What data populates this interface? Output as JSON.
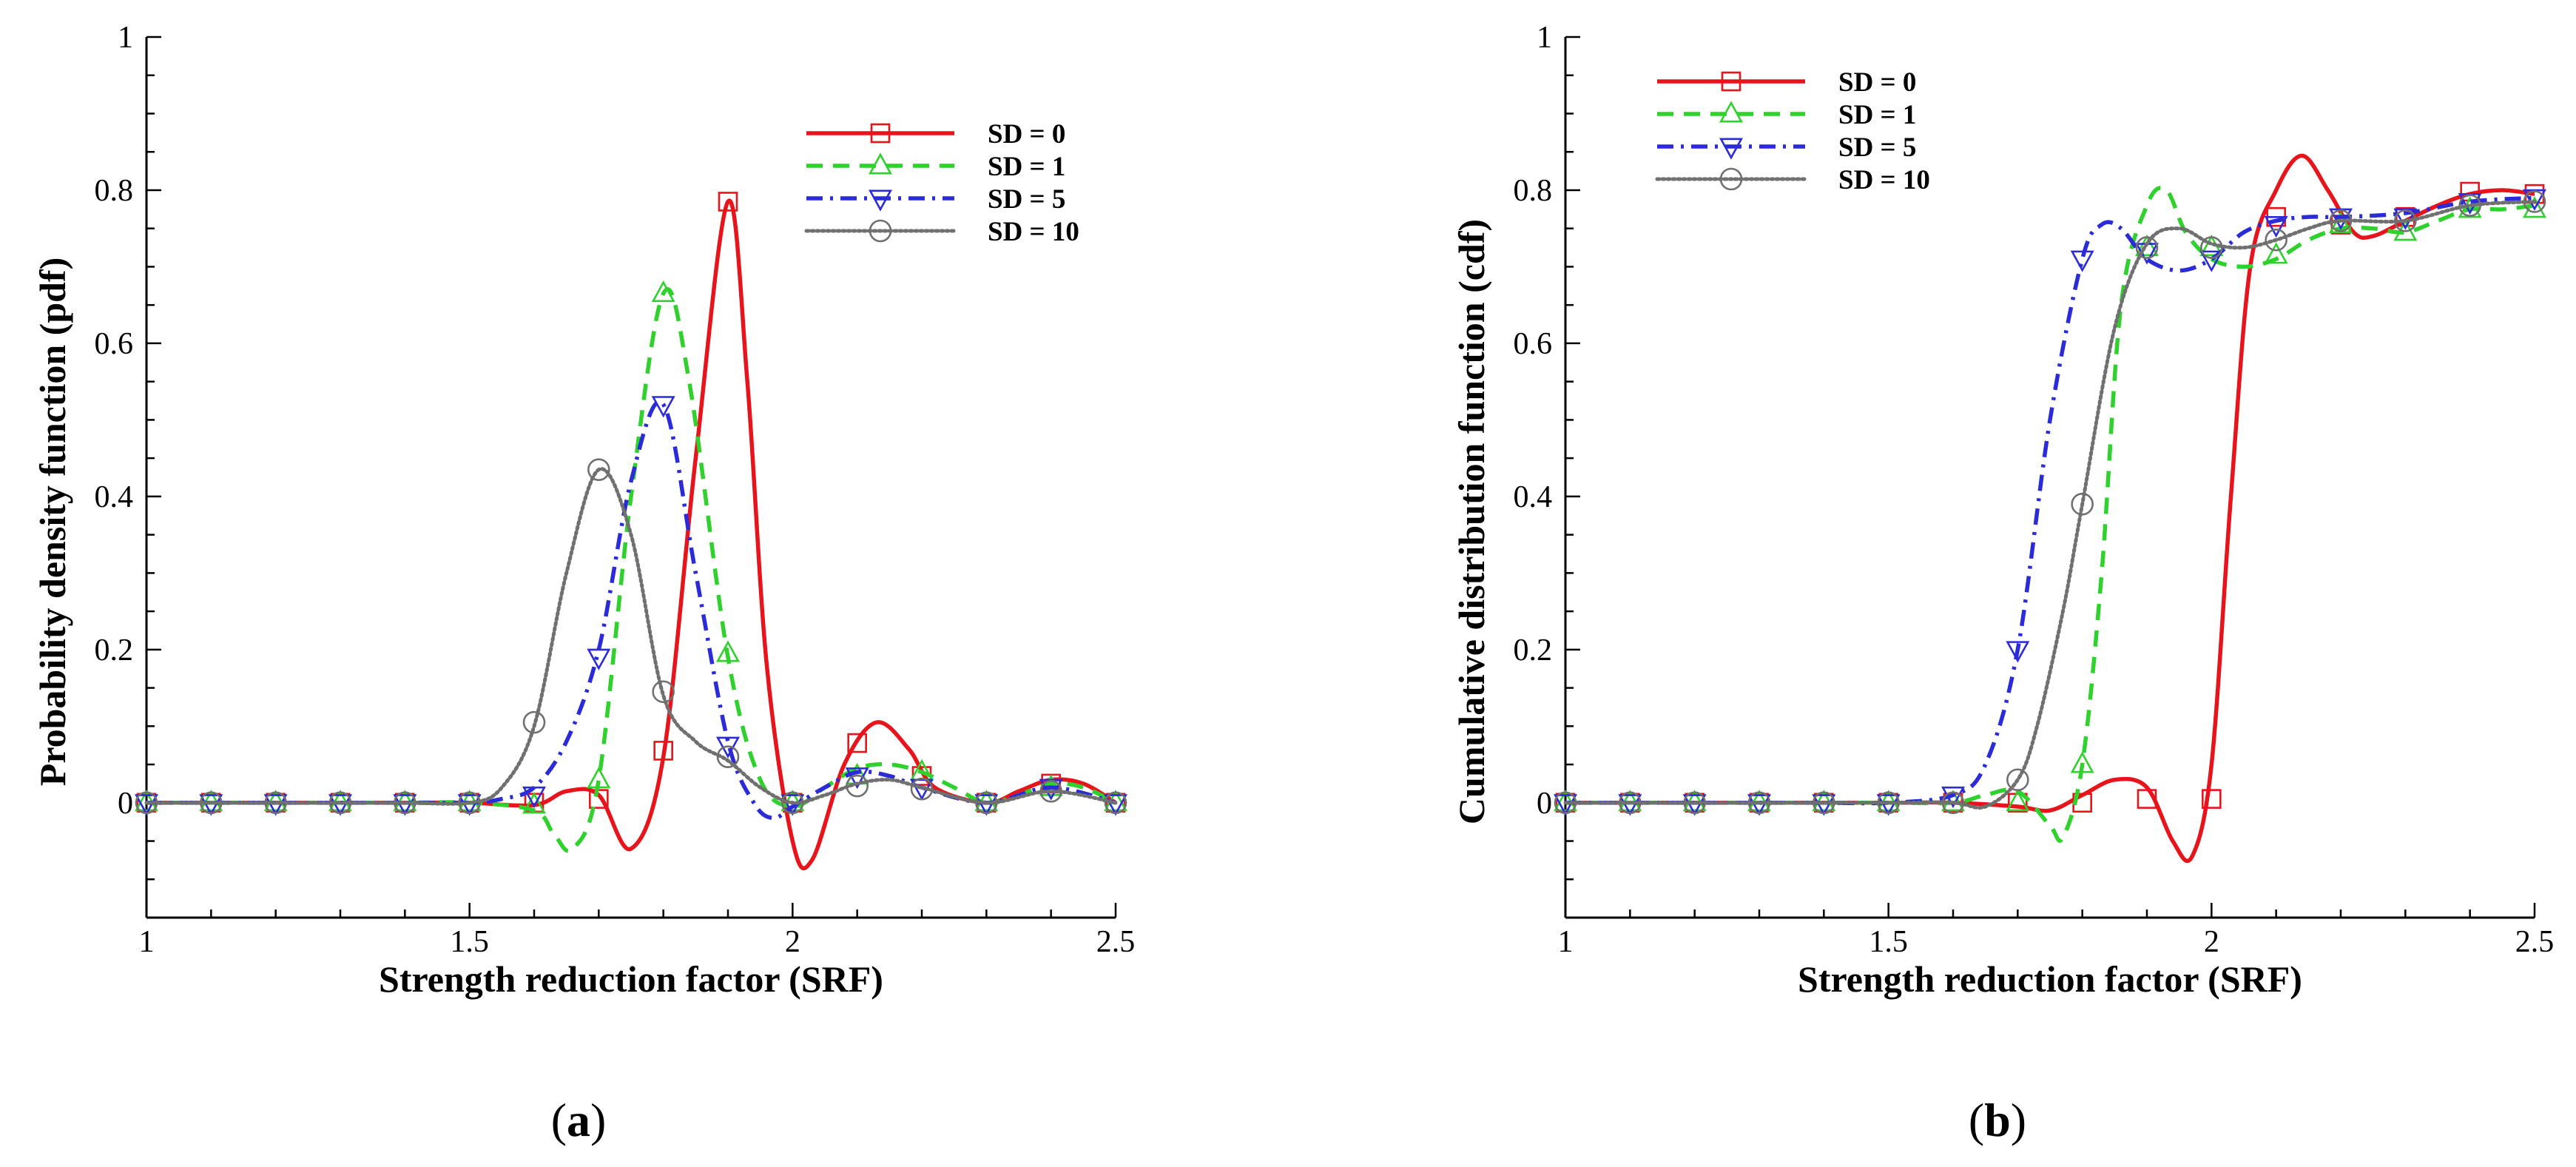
{
  "chart_data": [
    {
      "type": "line",
      "panel_label": "a",
      "xlabel": "Strength reduction factor (SRF)",
      "ylabel": "Probability density function (pdf)",
      "xlim": [
        1,
        2.5
      ],
      "ylim": [
        -0.15,
        1
      ],
      "xticks": [
        1,
        1.5,
        2,
        2.5
      ],
      "yticks": [
        0,
        0.2,
        0.4,
        0.6,
        0.8,
        1
      ],
      "legend": "top-right",
      "grid": false,
      "series": [
        {
          "name": "SD = 0",
          "color": "#e8141b",
          "dash": "solid",
          "marker": "square",
          "x": [
            1.0,
            1.1,
            1.2,
            1.3,
            1.4,
            1.5,
            1.6,
            1.65,
            1.7,
            1.75,
            1.8,
            1.85,
            1.9,
            1.93,
            1.96,
            2.0,
            2.03,
            2.08,
            2.13,
            2.18,
            2.22,
            2.3,
            2.35,
            2.4,
            2.45,
            2.5
          ],
          "y": [
            0,
            0,
            0,
            0,
            0,
            0,
            -0.003,
            0.015,
            0.01,
            -0.06,
            0.06,
            0.45,
            0.785,
            0.55,
            0.18,
            -0.05,
            -0.075,
            0.05,
            0.105,
            0.07,
            0.02,
            0,
            0.015,
            0.03,
            0.025,
            0
          ],
          "marker_x": [
            1.0,
            1.1,
            1.2,
            1.3,
            1.4,
            1.5,
            1.6,
            1.7,
            1.8,
            1.9,
            2.0,
            2.1,
            2.2,
            2.3,
            2.4,
            2.5
          ],
          "marker_y": [
            0,
            0,
            0,
            0,
            0,
            0,
            0,
            0.005,
            0.068,
            0.785,
            0,
            0.078,
            0.035,
            0,
            0.025,
            0
          ]
        },
        {
          "name": "SD = 1",
          "color": "#2fd12c",
          "dash": "dashed",
          "marker": "triangle-up",
          "x": [
            1.0,
            1.1,
            1.2,
            1.3,
            1.4,
            1.5,
            1.6,
            1.63,
            1.66,
            1.7,
            1.75,
            1.8,
            1.84,
            1.9,
            1.95,
            2.0,
            2.05,
            2.1,
            2.15,
            2.2,
            2.25,
            2.3,
            2.35,
            2.4,
            2.45,
            2.5
          ],
          "y": [
            0,
            0,
            0,
            0,
            0,
            0,
            -0.01,
            -0.04,
            -0.06,
            0.03,
            0.4,
            0.665,
            0.55,
            0.19,
            0.03,
            -0.005,
            0.02,
            0.045,
            0.05,
            0.04,
            0.02,
            0,
            0.01,
            0.025,
            0.02,
            0
          ],
          "marker_x": [
            1.0,
            1.1,
            1.2,
            1.3,
            1.4,
            1.5,
            1.6,
            1.7,
            1.8,
            1.9,
            2.0,
            2.1,
            2.2,
            2.3,
            2.4,
            2.5
          ],
          "marker_y": [
            0,
            0,
            0,
            0,
            0,
            0,
            -0.003,
            0.03,
            0.665,
            0.195,
            0,
            0.035,
            0.04,
            0,
            0.02,
            0
          ]
        },
        {
          "name": "SD = 5",
          "color": "#2b2bd9",
          "dash": "dashdot",
          "marker": "triangle-down",
          "x": [
            1.0,
            1.1,
            1.2,
            1.3,
            1.4,
            1.5,
            1.55,
            1.6,
            1.65,
            1.7,
            1.75,
            1.8,
            1.85,
            1.9,
            1.94,
            1.97,
            2.0,
            2.05,
            2.1,
            2.15,
            2.2,
            2.3,
            2.4,
            2.5
          ],
          "y": [
            0,
            0,
            0,
            0,
            0,
            0,
            0.005,
            0.02,
            0.08,
            0.2,
            0.42,
            0.52,
            0.3,
            0.08,
            0,
            -0.02,
            -0.005,
            0.02,
            0.04,
            0.035,
            0.02,
            0,
            0.02,
            0
          ],
          "marker_x": [
            1.0,
            1.1,
            1.2,
            1.3,
            1.4,
            1.5,
            1.6,
            1.7,
            1.8,
            1.9,
            2.0,
            2.1,
            2.2,
            2.3,
            2.4,
            2.5
          ],
          "marker_y": [
            0,
            0,
            0,
            0,
            0,
            0,
            0.01,
            0.19,
            0.52,
            0.075,
            0,
            0.035,
            0.02,
            0,
            0.02,
            0
          ]
        },
        {
          "name": "SD = 10",
          "color": "#707070",
          "dash": "dotted",
          "marker": "circle",
          "x": [
            1.0,
            1.1,
            1.2,
            1.3,
            1.4,
            1.5,
            1.55,
            1.6,
            1.65,
            1.7,
            1.75,
            1.8,
            1.85,
            1.9,
            1.95,
            2.0,
            2.05,
            2.1,
            2.15,
            2.2,
            2.3,
            2.4,
            2.5
          ],
          "y": [
            0,
            0,
            0,
            0,
            0,
            0,
            0.02,
            0.1,
            0.3,
            0.435,
            0.35,
            0.14,
            0.08,
            0.055,
            0.02,
            0,
            0.01,
            0.025,
            0.03,
            0.02,
            0,
            0.015,
            0
          ],
          "marker_x": [
            1.0,
            1.1,
            1.2,
            1.3,
            1.4,
            1.5,
            1.6,
            1.7,
            1.8,
            1.9,
            2.0,
            2.1,
            2.2,
            2.3,
            2.4,
            2.5
          ],
          "marker_y": [
            0,
            0,
            0,
            0,
            0,
            0,
            0.105,
            0.435,
            0.145,
            0.06,
            0,
            0.022,
            0.018,
            0,
            0.015,
            0
          ]
        }
      ]
    },
    {
      "type": "line",
      "panel_label": "b",
      "xlabel": "Strength reduction factor (SRF)",
      "ylabel": "Cumulative distribution function (cdf)",
      "xlim": [
        1,
        2.5
      ],
      "ylim": [
        -0.15,
        1
      ],
      "xticks": [
        1,
        1.5,
        2,
        2.5
      ],
      "yticks": [
        0,
        0.2,
        0.4,
        0.6,
        0.8,
        1
      ],
      "legend": "top-left",
      "grid": false,
      "series": [
        {
          "name": "SD = 0",
          "color": "#e8141b",
          "dash": "solid",
          "marker": "square",
          "x": [
            1.0,
            1.1,
            1.2,
            1.3,
            1.4,
            1.5,
            1.6,
            1.7,
            1.75,
            1.8,
            1.85,
            1.9,
            1.94,
            1.97,
            2.0,
            2.03,
            2.06,
            2.1,
            2.14,
            2.18,
            2.22,
            2.25,
            2.3,
            2.35,
            2.4,
            2.45,
            2.5
          ],
          "y": [
            0,
            0,
            0,
            0,
            0,
            0,
            0,
            -0.005,
            -0.01,
            0.01,
            0.03,
            0.02,
            -0.05,
            -0.07,
            0.05,
            0.4,
            0.7,
            0.8,
            0.845,
            0.8,
            0.745,
            0.74,
            0.76,
            0.78,
            0.795,
            0.8,
            0.795
          ],
          "marker_x": [
            1.0,
            1.1,
            1.2,
            1.3,
            1.4,
            1.5,
            1.6,
            1.7,
            1.8,
            1.9,
            2.0,
            2.1,
            2.2,
            2.3,
            2.4,
            2.5
          ],
          "marker_y": [
            0,
            0,
            0,
            0,
            0,
            0,
            0,
            0,
            0,
            0.005,
            0.005,
            0.765,
            0.755,
            0.765,
            0.798,
            0.795
          ]
        },
        {
          "name": "SD = 1",
          "color": "#2fd12c",
          "dash": "dashed",
          "marker": "triangle-up",
          "x": [
            1.0,
            1.1,
            1.2,
            1.3,
            1.4,
            1.5,
            1.6,
            1.65,
            1.7,
            1.75,
            1.77,
            1.8,
            1.83,
            1.86,
            1.9,
            1.93,
            1.96,
            2.0,
            2.05,
            2.1,
            2.15,
            2.2,
            2.25,
            2.3,
            2.35,
            2.4,
            2.45,
            2.5
          ],
          "y": [
            0,
            0,
            0,
            0,
            0,
            0,
            0,
            0.01,
            0.015,
            -0.03,
            -0.045,
            0.05,
            0.3,
            0.65,
            0.78,
            0.8,
            0.745,
            0.71,
            0.7,
            0.71,
            0.735,
            0.75,
            0.75,
            0.745,
            0.76,
            0.775,
            0.775,
            0.78
          ],
          "marker_x": [
            1.0,
            1.1,
            1.2,
            1.3,
            1.4,
            1.5,
            1.6,
            1.7,
            1.8,
            1.9,
            2.0,
            2.1,
            2.2,
            2.3,
            2.4,
            2.5
          ],
          "marker_y": [
            0,
            0,
            0,
            0,
            0,
            0,
            0,
            0,
            0.05,
            0.725,
            0.725,
            0.715,
            0.755,
            0.745,
            0.775,
            0.775
          ]
        },
        {
          "name": "SD = 5",
          "color": "#2b2bd9",
          "dash": "dashdot",
          "marker": "triangle-down",
          "x": [
            1.0,
            1.1,
            1.2,
            1.3,
            1.4,
            1.5,
            1.6,
            1.65,
            1.7,
            1.75,
            1.8,
            1.83,
            1.86,
            1.9,
            1.95,
            2.0,
            2.05,
            2.1,
            2.15,
            2.2,
            2.3,
            2.4,
            2.5
          ],
          "y": [
            0,
            0,
            0,
            0,
            0,
            0,
            0.01,
            0.05,
            0.2,
            0.5,
            0.71,
            0.755,
            0.75,
            0.71,
            0.695,
            0.71,
            0.745,
            0.76,
            0.765,
            0.765,
            0.77,
            0.785,
            0.79
          ],
          "marker_x": [
            1.0,
            1.1,
            1.2,
            1.3,
            1.4,
            1.5,
            1.6,
            1.7,
            1.8,
            1.9,
            2.0,
            2.1,
            2.2,
            2.3,
            2.4,
            2.5
          ],
          "marker_y": [
            0,
            0,
            0,
            0,
            0,
            0,
            0.01,
            0.2,
            0.71,
            0.72,
            0.71,
            0.755,
            0.765,
            0.765,
            0.785,
            0.79
          ]
        },
        {
          "name": "SD = 10",
          "color": "#707070",
          "dash": "dotted",
          "marker": "circle",
          "x": [
            1.0,
            1.1,
            1.2,
            1.3,
            1.4,
            1.5,
            1.6,
            1.65,
            1.7,
            1.73,
            1.77,
            1.8,
            1.85,
            1.9,
            1.95,
            2.0,
            2.05,
            2.1,
            2.15,
            2.2,
            2.3,
            2.4,
            2.5
          ],
          "y": [
            0,
            0,
            0,
            0,
            0,
            0,
            0,
            -0.005,
            0.03,
            0.1,
            0.25,
            0.39,
            0.62,
            0.73,
            0.75,
            0.73,
            0.725,
            0.735,
            0.75,
            0.76,
            0.76,
            0.78,
            0.785
          ],
          "marker_x": [
            1.0,
            1.1,
            1.2,
            1.3,
            1.4,
            1.5,
            1.6,
            1.7,
            1.8,
            1.9,
            2.0,
            2.1,
            2.2,
            2.3,
            2.4,
            2.5
          ],
          "marker_y": [
            0,
            0,
            0,
            0,
            0,
            0,
            0,
            0.03,
            0.39,
            0.725,
            0.725,
            0.735,
            0.76,
            0.76,
            0.78,
            0.785
          ]
        }
      ]
    }
  ]
}
